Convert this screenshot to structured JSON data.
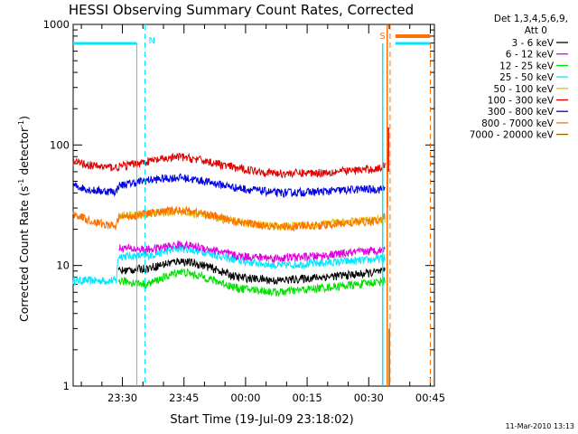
{
  "chart_data": {
    "type": "line",
    "title": "HESSI Observing Summary Count Rates, Corrected",
    "xlabel": "Start Time (19-Jul-09 23:18:02)",
    "ylabel_main": "Corrected Count Rate (s",
    "ylabel_sup1": "-1",
    "ylabel_mid": " detector",
    "ylabel_sup2": "-1",
    "ylabel_end": ")",
    "y_scale": "log",
    "ylim": [
      1,
      1000
    ],
    "xlim_minutes": [
      0,
      88
    ],
    "x_tick_labels": [
      "23:30",
      "23:45",
      "00:00",
      "00:15",
      "00:30",
      "00:45"
    ],
    "x_tick_minutes": [
      12,
      27,
      42,
      57,
      72,
      87
    ],
    "y_tick_labels": [
      "1",
      "10",
      "100",
      "1000"
    ],
    "y_tick_values": [
      1,
      10,
      100,
      1000
    ],
    "legend_header": [
      "Det 1,3,4,5,6,9,",
      "Att 0"
    ],
    "legend_placement": "right",
    "annotations": [
      {
        "text": "N",
        "x_minutes": 17.5,
        "color": "#00d8e0"
      },
      {
        "text": "S",
        "x_minutes": 76.5,
        "color": "#e07000"
      }
    ],
    "timestamp": "11-Mar-2010 13:13",
    "series": [
      {
        "name": "3 - 6 keV",
        "color": "#000000",
        "profile": [
          [
            0,
            null
          ],
          [
            10.5,
            null
          ],
          [
            11,
            9
          ],
          [
            18,
            9.5
          ],
          [
            26,
            11
          ],
          [
            32,
            10
          ],
          [
            40,
            8
          ],
          [
            50,
            7.5
          ],
          [
            60,
            8
          ],
          [
            70,
            8.5
          ],
          [
            76,
            9
          ]
        ]
      },
      {
        "name": "6 - 12 keV",
        "color": "#e000e0",
        "profile": [
          [
            0,
            null
          ],
          [
            10.5,
            null
          ],
          [
            11,
            14
          ],
          [
            18,
            13.5
          ],
          [
            26,
            15
          ],
          [
            32,
            14
          ],
          [
            40,
            12
          ],
          [
            50,
            11.5
          ],
          [
            60,
            12
          ],
          [
            70,
            13
          ],
          [
            76,
            13.5
          ]
        ]
      },
      {
        "name": "12 - 25 keV",
        "color": "#00e000",
        "profile": [
          [
            0,
            null
          ],
          [
            10.5,
            null
          ],
          [
            11,
            7.5
          ],
          [
            18,
            7
          ],
          [
            26,
            9
          ],
          [
            32,
            8
          ],
          [
            40,
            6.5
          ],
          [
            50,
            6
          ],
          [
            60,
            6.5
          ],
          [
            70,
            7
          ],
          [
            76,
            7.5
          ]
        ]
      },
      {
        "name": "25 - 50 keV",
        "color": "#00e8ff",
        "profile": [
          [
            0,
            7.5
          ],
          [
            10.5,
            7.5
          ],
          [
            11,
            12
          ],
          [
            18,
            12
          ],
          [
            26,
            14
          ],
          [
            32,
            13
          ],
          [
            40,
            11
          ],
          [
            50,
            10
          ],
          [
            60,
            10.5
          ],
          [
            70,
            11
          ],
          [
            76,
            11.5
          ]
        ]
      },
      {
        "name": "50 - 100 keV",
        "color": "#e0c000",
        "profile": [
          [
            0,
            null
          ],
          [
            10.5,
            null
          ],
          [
            11,
            26
          ],
          [
            18,
            27
          ],
          [
            26,
            28
          ],
          [
            32,
            26
          ],
          [
            40,
            23
          ],
          [
            50,
            21
          ],
          [
            60,
            22
          ],
          [
            70,
            23.5
          ],
          [
            76,
            24.5
          ]
        ]
      },
      {
        "name": "100 - 300 keV",
        "color": "#e00000",
        "profile": [
          [
            0,
            73
          ],
          [
            5,
            67
          ],
          [
            10.5,
            65
          ],
          [
            11,
            66
          ],
          [
            18,
            73
          ],
          [
            26,
            80
          ],
          [
            32,
            74
          ],
          [
            40,
            64
          ],
          [
            50,
            58
          ],
          [
            60,
            59
          ],
          [
            70,
            62
          ],
          [
            75,
            64
          ],
          [
            76,
            70
          ]
        ]
      },
      {
        "name": "300 - 800 keV",
        "color": "#0000e0",
        "profile": [
          [
            0,
            46
          ],
          [
            5,
            42
          ],
          [
            10.5,
            41
          ],
          [
            11,
            46
          ],
          [
            18,
            51
          ],
          [
            26,
            54
          ],
          [
            32,
            50
          ],
          [
            40,
            44
          ],
          [
            50,
            40
          ],
          [
            60,
            41
          ],
          [
            70,
            43
          ],
          [
            75,
            43
          ],
          [
            76,
            46
          ]
        ]
      },
      {
        "name": "800 - 7000 keV",
        "color": "#ff7000",
        "profile": [
          [
            0,
            27
          ],
          [
            5,
            23
          ],
          [
            10.5,
            21
          ],
          [
            11,
            25
          ],
          [
            18,
            27
          ],
          [
            26,
            29
          ],
          [
            32,
            27
          ],
          [
            40,
            23
          ],
          [
            50,
            21
          ],
          [
            60,
            21.5
          ],
          [
            70,
            23
          ],
          [
            75,
            23.5
          ],
          [
            76,
            26
          ]
        ]
      },
      {
        "name": "7000 - 20000 keV",
        "color": "#a06000",
        "profile": [
          [
            0,
            null
          ],
          [
            76,
            null
          ]
        ]
      }
    ]
  }
}
